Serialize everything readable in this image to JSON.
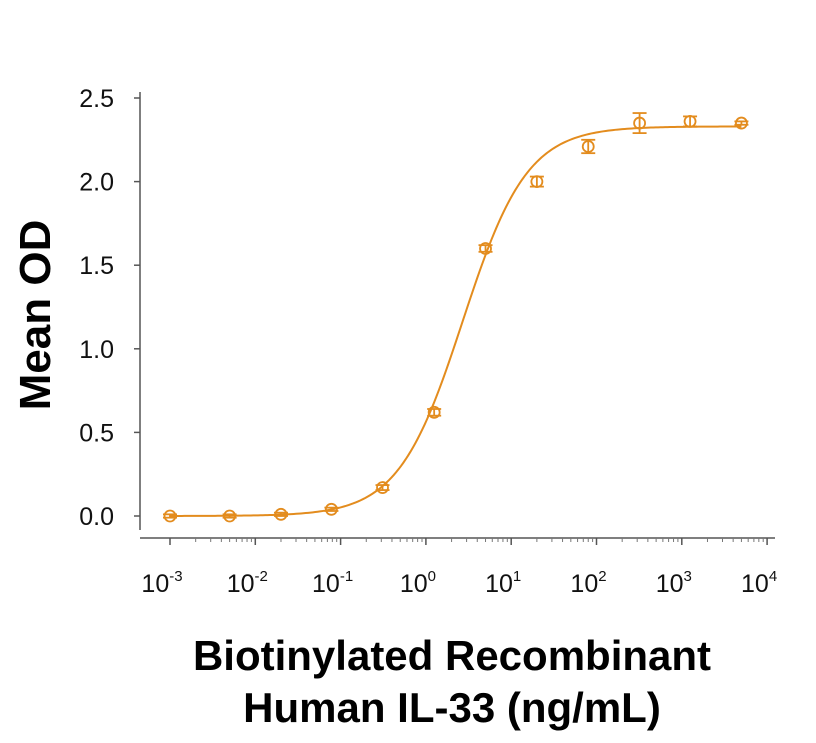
{
  "chart_data": {
    "type": "scatter",
    "xscale": "log",
    "xlim": [
      0.001,
      10000
    ],
    "ylim": [
      0,
      2.5
    ],
    "ylabel": "Mean OD",
    "xlabel_lines": [
      "Biotinylated Recombinant",
      "Human IL-33 (ng/mL)"
    ],
    "yticks": [
      "0.0",
      "0.5",
      "1.0",
      "1.5",
      "2.0",
      "2.5"
    ],
    "xticks": [
      {
        "base": "10",
        "exp": "-3"
      },
      {
        "base": "10",
        "exp": "-2"
      },
      {
        "base": "10",
        "exp": "-1"
      },
      {
        "base": "10",
        "exp": "0"
      },
      {
        "base": "10",
        "exp": "1"
      },
      {
        "base": "10",
        "exp": "2"
      },
      {
        "base": "10",
        "exp": "3"
      },
      {
        "base": "10",
        "exp": "4"
      }
    ],
    "color": "#e38c1e",
    "series": [
      {
        "points": [
          {
            "x": 0.001,
            "y": 0.0,
            "err": 0.01
          },
          {
            "x": 0.005,
            "y": 0.0,
            "err": 0.01
          },
          {
            "x": 0.02,
            "y": 0.01,
            "err": 0.01
          },
          {
            "x": 0.078,
            "y": 0.04,
            "err": 0.01
          },
          {
            "x": 0.31,
            "y": 0.17,
            "err": 0.015
          },
          {
            "x": 1.25,
            "y": 0.62,
            "err": 0.02
          },
          {
            "x": 5.0,
            "y": 1.6,
            "err": 0.02
          },
          {
            "x": 20,
            "y": 2.0,
            "err": 0.03
          },
          {
            "x": 80,
            "y": 2.21,
            "err": 0.04
          },
          {
            "x": 320,
            "y": 2.35,
            "err": 0.06
          },
          {
            "x": 1250,
            "y": 2.36,
            "err": 0.03
          },
          {
            "x": 5000,
            "y": 2.35,
            "err": 0.01
          }
        ],
        "fit": {
          "model": "4PL",
          "bottom": 0.0,
          "top": 2.33,
          "ec50": 2.7,
          "hill": 1.15
        }
      }
    ]
  }
}
